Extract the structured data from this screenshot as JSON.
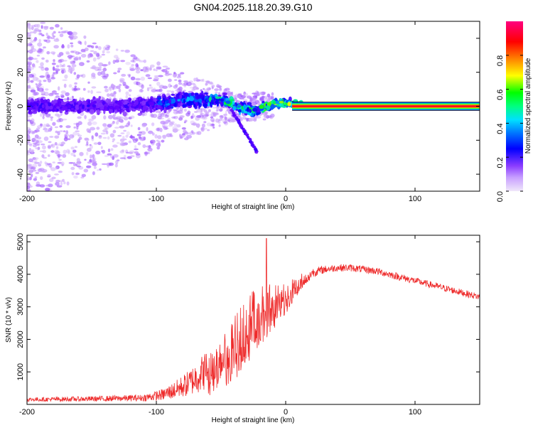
{
  "figure": {
    "title": "GN04.2025.118.20.39.G10"
  },
  "chart_data": [
    {
      "type": "heatmap",
      "title": "GN04.2025.118.20.39.G10",
      "xlabel": "Height of straight line (km)",
      "ylabel": "Frequency (Hz)",
      "xlim": [
        -200,
        150
      ],
      "ylim": [
        -50,
        50
      ],
      "xticks": [
        -200,
        -100,
        0,
        100
      ],
      "xtick_labels": [
        "-200",
        "-100",
        "0",
        "100"
      ],
      "yticks": [
        -40,
        -20,
        0,
        20,
        40
      ],
      "ytick_labels": [
        "-40",
        "-20",
        "0",
        "20",
        "40"
      ],
      "colorbar": {
        "label": "Normalized spectral amplitude",
        "range": [
          0,
          1
        ],
        "ticks": [
          0,
          0.2,
          0.4,
          0.6,
          0.8
        ],
        "tick_labels": [
          "0.0",
          "0.2",
          "0.4",
          "0.6",
          "0.8"
        ],
        "colormap": [
          "#e8dcf5",
          "#b070ff",
          "#6000ff",
          "#0000ff",
          "#00e0ff",
          "#00ff00",
          "#ffff00",
          "#ff8000",
          "#ff0000",
          "#ff0080"
        ]
      },
      "description_points": {
        "main_band_center_hz": [
          [
            -200,
            0
          ],
          [
            -150,
            0
          ],
          [
            -100,
            1
          ],
          [
            -80,
            4
          ],
          [
            -60,
            4
          ],
          [
            -45,
            3
          ],
          [
            -35,
            -1
          ],
          [
            -25,
            -3
          ],
          [
            -15,
            0
          ],
          [
            -5,
            2
          ],
          [
            0,
            2
          ],
          [
            5,
            1
          ],
          [
            10,
            1
          ],
          [
            150,
            0
          ]
        ],
        "steady_line_start_km": 5,
        "steady_line_freq_hz": 0,
        "branch_end": [
          -22,
          -27
        ]
      }
    },
    {
      "type": "line",
      "xlabel": "Height of straight line (km)",
      "ylabel": "SNR (10 * v/v)",
      "xlim": [
        -200,
        150
      ],
      "ylim": [
        0,
        5200
      ],
      "xticks": [
        -200,
        -100,
        0,
        100
      ],
      "xtick_labels": [
        "-200",
        "-100",
        "0",
        "100"
      ],
      "yticks": [
        1000,
        2000,
        3000,
        4000,
        5000
      ],
      "ytick_labels": [
        "1000",
        "2000",
        "3000",
        "4000",
        "5000"
      ],
      "series": [
        {
          "name": "SNR",
          "color": "#ee2b2b",
          "envelope": {
            "x": [
              -200,
              -150,
              -110,
              -95,
              -85,
              -75,
              -65,
              -55,
              -45,
              -38,
              -32,
              -27,
              -22,
              -18,
              -15,
              -12,
              -8,
              -4,
              0,
              5,
              10,
              15,
              20,
              30,
              40,
              50,
              60,
              70,
              80,
              90,
              100,
              110,
              120,
              130,
              140,
              150
            ],
            "y": [
              150,
              170,
              200,
              300,
              450,
              650,
              950,
              1300,
              1750,
              2200,
              2600,
              2800,
              3000,
              3100,
              3150,
              3250,
              3300,
              3350,
              3400,
              3600,
              3800,
              3950,
              4050,
              4150,
              4200,
              4200,
              4150,
              4100,
              4000,
              3900,
              3800,
              3700,
              3600,
              3500,
              3400,
              3300
            ],
            "noise": [
              80,
              100,
              130,
              220,
              350,
              500,
              700,
              850,
              1000,
              1200,
              1300,
              1200,
              1100,
              1000,
              950,
              900,
              800,
              650,
              550,
              450,
              350,
              250,
              180,
              150,
              140,
              140,
              140,
              140,
              140,
              140,
              130,
              130,
              130,
              130,
              130,
              130
            ]
          },
          "peak": [
            -15,
            5100
          ]
        }
      ]
    }
  ]
}
